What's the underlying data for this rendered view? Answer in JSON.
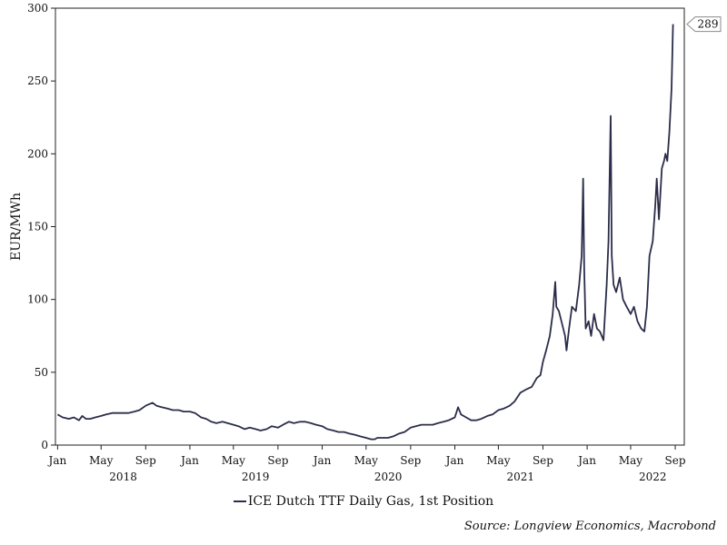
{
  "chart_data": {
    "type": "line",
    "ylabel": "EUR/MWh",
    "ylim": [
      0,
      300
    ],
    "yticks": [
      0,
      50,
      100,
      150,
      200,
      250,
      300
    ],
    "x_range": [
      "2017-12-26",
      "2022-09-26"
    ],
    "month_ticks": [
      {
        "label": "Jan",
        "date": "2018-01-01"
      },
      {
        "label": "May",
        "date": "2018-05-01"
      },
      {
        "label": "Sep",
        "date": "2018-09-01"
      },
      {
        "label": "Jan",
        "date": "2019-01-01"
      },
      {
        "label": "May",
        "date": "2019-05-01"
      },
      {
        "label": "Sep",
        "date": "2019-09-01"
      },
      {
        "label": "Jan",
        "date": "2020-01-01"
      },
      {
        "label": "May",
        "date": "2020-05-01"
      },
      {
        "label": "Sep",
        "date": "2020-09-01"
      },
      {
        "label": "Jan",
        "date": "2021-01-01"
      },
      {
        "label": "May",
        "date": "2021-05-01"
      },
      {
        "label": "Sep",
        "date": "2021-09-01"
      },
      {
        "label": "Jan",
        "date": "2022-01-01"
      },
      {
        "label": "May",
        "date": "2022-05-01"
      },
      {
        "label": "Sep",
        "date": "2022-09-01"
      }
    ],
    "year_labels": [
      {
        "label": "2018",
        "date": "2018-07-01"
      },
      {
        "label": "2019",
        "date": "2019-07-01"
      },
      {
        "label": "2020",
        "date": "2020-07-01"
      },
      {
        "label": "2021",
        "date": "2021-07-01"
      },
      {
        "label": "2022",
        "date": "2022-07-01"
      }
    ],
    "series": [
      {
        "name": "ICE Dutch TTF Daily Gas, 1st Position",
        "color": "#2b2d4a",
        "last_value_label": "289",
        "points": [
          [
            "2018-01-01",
            21
          ],
          [
            "2018-01-15",
            19
          ],
          [
            "2018-02-01",
            18
          ],
          [
            "2018-02-15",
            19
          ],
          [
            "2018-03-01",
            17
          ],
          [
            "2018-03-10",
            20
          ],
          [
            "2018-03-20",
            18
          ],
          [
            "2018-04-01",
            18
          ],
          [
            "2018-04-15",
            19
          ],
          [
            "2018-05-01",
            20
          ],
          [
            "2018-05-15",
            21
          ],
          [
            "2018-06-01",
            22
          ],
          [
            "2018-06-15",
            22
          ],
          [
            "2018-07-01",
            22
          ],
          [
            "2018-07-15",
            22
          ],
          [
            "2018-08-01",
            23
          ],
          [
            "2018-08-15",
            24
          ],
          [
            "2018-09-01",
            27
          ],
          [
            "2018-09-10",
            28
          ],
          [
            "2018-09-20",
            29
          ],
          [
            "2018-10-01",
            27
          ],
          [
            "2018-10-15",
            26
          ],
          [
            "2018-11-01",
            25
          ],
          [
            "2018-11-15",
            24
          ],
          [
            "2018-12-01",
            24
          ],
          [
            "2018-12-15",
            23
          ],
          [
            "2019-01-01",
            23
          ],
          [
            "2019-01-15",
            22
          ],
          [
            "2019-02-01",
            19
          ],
          [
            "2019-02-15",
            18
          ],
          [
            "2019-03-01",
            16
          ],
          [
            "2019-03-15",
            15
          ],
          [
            "2019-04-01",
            16
          ],
          [
            "2019-04-15",
            15
          ],
          [
            "2019-05-01",
            14
          ],
          [
            "2019-05-15",
            13
          ],
          [
            "2019-06-01",
            11
          ],
          [
            "2019-06-15",
            12
          ],
          [
            "2019-07-01",
            11
          ],
          [
            "2019-07-15",
            10
          ],
          [
            "2019-08-01",
            11
          ],
          [
            "2019-08-15",
            13
          ],
          [
            "2019-09-01",
            12
          ],
          [
            "2019-09-15",
            14
          ],
          [
            "2019-10-01",
            16
          ],
          [
            "2019-10-15",
            15
          ],
          [
            "2019-11-01",
            16
          ],
          [
            "2019-11-15",
            16
          ],
          [
            "2019-12-01",
            15
          ],
          [
            "2019-12-15",
            14
          ],
          [
            "2020-01-01",
            13
          ],
          [
            "2020-01-15",
            11
          ],
          [
            "2020-02-01",
            10
          ],
          [
            "2020-02-15",
            9
          ],
          [
            "2020-03-01",
            9
          ],
          [
            "2020-03-15",
            8
          ],
          [
            "2020-04-01",
            7
          ],
          [
            "2020-04-15",
            6
          ],
          [
            "2020-05-01",
            5
          ],
          [
            "2020-05-15",
            4
          ],
          [
            "2020-05-25",
            4
          ],
          [
            "2020-06-01",
            5
          ],
          [
            "2020-06-15",
            5
          ],
          [
            "2020-07-01",
            5
          ],
          [
            "2020-07-15",
            6
          ],
          [
            "2020-08-01",
            8
          ],
          [
            "2020-08-15",
            9
          ],
          [
            "2020-09-01",
            12
          ],
          [
            "2020-09-15",
            13
          ],
          [
            "2020-10-01",
            14
          ],
          [
            "2020-10-15",
            14
          ],
          [
            "2020-11-01",
            14
          ],
          [
            "2020-11-15",
            15
          ],
          [
            "2020-12-01",
            16
          ],
          [
            "2020-12-15",
            17
          ],
          [
            "2021-01-01",
            19
          ],
          [
            "2021-01-10",
            26
          ],
          [
            "2021-01-18",
            21
          ],
          [
            "2021-02-01",
            19
          ],
          [
            "2021-02-15",
            17
          ],
          [
            "2021-03-01",
            17
          ],
          [
            "2021-03-15",
            18
          ],
          [
            "2021-04-01",
            20
          ],
          [
            "2021-04-15",
            21
          ],
          [
            "2021-05-01",
            24
          ],
          [
            "2021-05-15",
            25
          ],
          [
            "2021-06-01",
            27
          ],
          [
            "2021-06-15",
            30
          ],
          [
            "2021-07-01",
            36
          ],
          [
            "2021-07-15",
            38
          ],
          [
            "2021-08-01",
            40
          ],
          [
            "2021-08-15",
            46
          ],
          [
            "2021-08-25",
            48
          ],
          [
            "2021-09-01",
            57
          ],
          [
            "2021-09-10",
            65
          ],
          [
            "2021-09-20",
            75
          ],
          [
            "2021-09-28",
            90
          ],
          [
            "2021-10-05",
            112
          ],
          [
            "2021-10-08",
            95
          ],
          [
            "2021-10-15",
            92
          ],
          [
            "2021-10-22",
            85
          ],
          [
            "2021-11-01",
            75
          ],
          [
            "2021-11-05",
            65
          ],
          [
            "2021-11-12",
            80
          ],
          [
            "2021-11-20",
            95
          ],
          [
            "2021-12-01",
            92
          ],
          [
            "2021-12-10",
            110
          ],
          [
            "2021-12-17",
            130
          ],
          [
            "2021-12-21",
            183
          ],
          [
            "2021-12-24",
            120
          ],
          [
            "2021-12-28",
            80
          ],
          [
            "2022-01-05",
            85
          ],
          [
            "2022-01-12",
            75
          ],
          [
            "2022-01-20",
            90
          ],
          [
            "2022-01-28",
            80
          ],
          [
            "2022-02-05",
            78
          ],
          [
            "2022-02-15",
            72
          ],
          [
            "2022-02-24",
            110
          ],
          [
            "2022-03-01",
            140
          ],
          [
            "2022-03-07",
            226
          ],
          [
            "2022-03-10",
            130
          ],
          [
            "2022-03-15",
            110
          ],
          [
            "2022-03-22",
            105
          ],
          [
            "2022-04-01",
            115
          ],
          [
            "2022-04-10",
            100
          ],
          [
            "2022-04-20",
            95
          ],
          [
            "2022-05-01",
            90
          ],
          [
            "2022-05-10",
            95
          ],
          [
            "2022-05-20",
            85
          ],
          [
            "2022-05-30",
            80
          ],
          [
            "2022-06-08",
            78
          ],
          [
            "2022-06-15",
            95
          ],
          [
            "2022-06-22",
            130
          ],
          [
            "2022-07-01",
            140
          ],
          [
            "2022-07-08",
            165
          ],
          [
            "2022-07-12",
            183
          ],
          [
            "2022-07-18",
            155
          ],
          [
            "2022-07-26",
            190
          ],
          [
            "2022-08-01",
            195
          ],
          [
            "2022-08-05",
            200
          ],
          [
            "2022-08-10",
            195
          ],
          [
            "2022-08-16",
            215
          ],
          [
            "2022-08-22",
            245
          ],
          [
            "2022-08-26",
            289
          ]
        ]
      }
    ]
  },
  "legend": {
    "label": "ICE Dutch TTF Daily Gas, 1st Position"
  },
  "source": "Source: Longview Economics, Macrobond"
}
